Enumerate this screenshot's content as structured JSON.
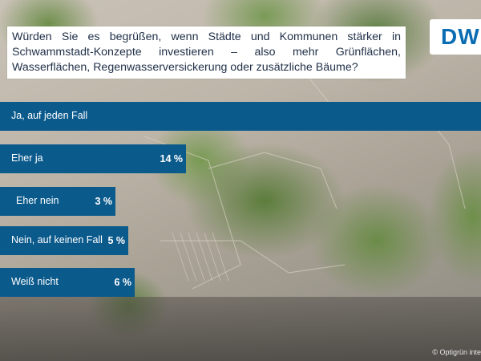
{
  "question": "Würden Sie es begrüßen, wenn Städte und Kommunen stärker in Schwammstadt-Konzepte investieren – also mehr Grünflächen, Wasserflächen, Regenwasserversickerung oder zusätzliche Bäume?",
  "logo_text": "DW",
  "credit": "© Optigrün inte",
  "colors": {
    "bar": "#0b5a8c",
    "question_text": "#1f2f47",
    "logo": "#0a6db3"
  },
  "chart_data": {
    "type": "bar",
    "orientation": "horizontal",
    "categories": [
      "Ja, auf jeden Fall",
      "Eher ja",
      "Eher nein",
      "Nein, auf keinen Fall",
      "Weiß nicht"
    ],
    "values": [
      null,
      14,
      3,
      5,
      6
    ],
    "value_labels": [
      "",
      "14 %",
      "3 %",
      "5 %",
      "6 %"
    ],
    "unit": "%",
    "title": "Würden Sie es begrüßen, wenn Städte und Kommunen stärker in Schwammstadt-Konzepte investieren – also mehr Grünflächen, Wasserflächen, Regenwasserversickerung oder zusätzliche Bäume?",
    "xlabel": "",
    "ylabel": "",
    "grid": false,
    "legend": "none"
  }
}
